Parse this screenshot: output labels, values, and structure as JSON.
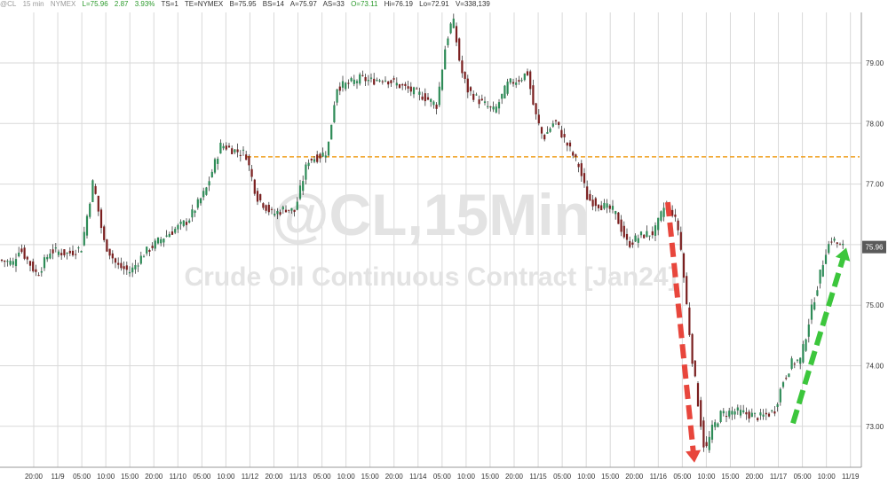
{
  "header": {
    "symbol": "@CL",
    "interval": "15 min",
    "exchange_tag": "NYMEX",
    "last": "L=75.96",
    "change": "2.87",
    "change_pct": "3.93%",
    "ts": "TS=1",
    "te": "TE=NYMEX",
    "bid": "B=75.95",
    "bid_size": "BS=14",
    "ask": "A=75.97",
    "ask_size": "AS=33",
    "open": "O=73.11",
    "high": "Hi=76.19",
    "low": "Lo=72.91",
    "volume": "V=338,139"
  },
  "watermark": {
    "title": "@CL,15Min",
    "subtitle": "Crude Oil Continuous Contract [Jan24]"
  },
  "last_price_label": "75.96",
  "colors": {
    "up": "#2e8b57",
    "down": "#7a1f1f",
    "reference_line": "#f0a020",
    "down_arrow": "#e8463c",
    "up_arrow": "#3cc63c",
    "price_badge": "#5a5a5a",
    "grid": "#d9d9d9",
    "watermark": "#e3e3e3"
  },
  "annotations": {
    "reference_level": 77.45,
    "down_arrow": {
      "from": 76.7,
      "to": 72.4
    },
    "up_arrow": {
      "from": 73.05,
      "to": 75.95
    }
  },
  "chart_data": {
    "type": "candlestick",
    "title": "@CL,15Min",
    "subtitle": "Crude Oil Continuous Contract [Jan24]",
    "xlabel": "",
    "ylabel": "",
    "ylim": [
      72.4,
      79.9
    ],
    "y_ticks": [
      73.0,
      74.0,
      75.0,
      76.0,
      77.0,
      78.0,
      79.0
    ],
    "x_tick_labels": [
      "20:00",
      "11/9",
      "05:00",
      "10:00",
      "15:00",
      "20:00",
      "11/10",
      "05:00",
      "10:00",
      "11/12",
      "20:00",
      "11/13",
      "05:00",
      "10:00",
      "15:00",
      "20:00",
      "11/14",
      "05:00",
      "10:00",
      "15:00",
      "20:00",
      "11/15",
      "05:00",
      "10:00",
      "15:00",
      "20:00",
      "11/16",
      "05:00",
      "10:00",
      "15:00",
      "20:00",
      "11/17",
      "05:00",
      "10:00",
      "11/19"
    ],
    "grid": true,
    "price_path": [
      [
        0,
        75.75
      ],
      [
        18,
        75.7
      ],
      [
        25,
        75.95
      ],
      [
        45,
        75.5
      ],
      [
        60,
        75.9
      ],
      [
        80,
        75.85
      ],
      [
        95,
        75.95
      ],
      [
        108,
        77.05
      ],
      [
        120,
        76.05
      ],
      [
        135,
        75.65
      ],
      [
        150,
        75.55
      ],
      [
        165,
        75.85
      ],
      [
        185,
        76.1
      ],
      [
        200,
        76.25
      ],
      [
        215,
        76.4
      ],
      [
        235,
        76.9
      ],
      [
        252,
        77.65
      ],
      [
        268,
        77.55
      ],
      [
        280,
        77.5
      ],
      [
        292,
        76.8
      ],
      [
        310,
        76.5
      ],
      [
        325,
        76.6
      ],
      [
        335,
        76.55
      ],
      [
        350,
        77.4
      ],
      [
        362,
        77.45
      ],
      [
        372,
        77.55
      ],
      [
        382,
        78.6
      ],
      [
        395,
        78.65
      ],
      [
        410,
        78.75
      ],
      [
        420,
        78.7
      ],
      [
        435,
        78.75
      ],
      [
        450,
        78.65
      ],
      [
        465,
        78.55
      ],
      [
        480,
        78.45
      ],
      [
        495,
        78.3
      ],
      [
        505,
        79.3
      ],
      [
        513,
        79.75
      ],
      [
        522,
        78.9
      ],
      [
        530,
        78.55
      ],
      [
        545,
        78.35
      ],
      [
        560,
        78.2
      ],
      [
        575,
        78.65
      ],
      [
        590,
        78.75
      ],
      [
        597,
        78.85
      ],
      [
        605,
        78.2
      ],
      [
        615,
        77.75
      ],
      [
        628,
        78.05
      ],
      [
        640,
        77.7
      ],
      [
        655,
        77.3
      ],
      [
        665,
        76.75
      ],
      [
        680,
        76.65
      ],
      [
        695,
        76.55
      ],
      [
        710,
        76.0
      ],
      [
        725,
        76.15
      ],
      [
        740,
        76.2
      ],
      [
        752,
        76.65
      ],
      [
        760,
        76.55
      ],
      [
        768,
        76.2
      ],
      [
        775,
        75.2
      ],
      [
        782,
        74.2
      ],
      [
        790,
        73.3
      ],
      [
        797,
        72.55
      ],
      [
        805,
        72.95
      ],
      [
        815,
        73.2
      ],
      [
        830,
        73.25
      ],
      [
        845,
        73.2
      ],
      [
        860,
        73.15
      ],
      [
        875,
        73.25
      ],
      [
        885,
        73.75
      ],
      [
        895,
        74.05
      ],
      [
        905,
        74.1
      ],
      [
        915,
        74.8
      ],
      [
        925,
        75.4
      ],
      [
        933,
        75.9
      ],
      [
        940,
        76.1
      ],
      [
        950,
        75.96
      ]
    ]
  }
}
